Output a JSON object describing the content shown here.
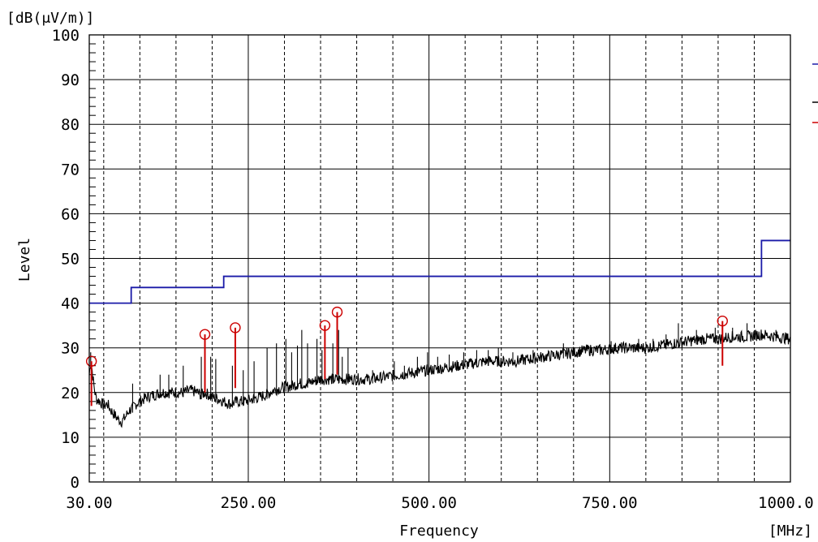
{
  "chart_data": {
    "type": "line",
    "title": "",
    "xlabel": "Frequency",
    "ylabel": "Level",
    "y_unit": "[dB(μV/m)]",
    "x_unit": "[MHz]",
    "xlim": [
      30,
      1000
    ],
    "ylim": [
      0,
      100
    ],
    "x_tick_labels": [
      "30.00",
      "250.00",
      "500.00",
      "750.00",
      "1000.0"
    ],
    "x_ticks": [
      30,
      250,
      500,
      750,
      1000
    ],
    "y_ticks": [
      0,
      10,
      20,
      30,
      40,
      50,
      60,
      70,
      80,
      90,
      100
    ],
    "grid": true,
    "colors": {
      "limit": "#1a1aa8",
      "trace": "#000000",
      "peaks": "#cc0000",
      "grid": "#000000"
    },
    "series": [
      {
        "kind": "limit-step",
        "color": "#1a1aa8",
        "points": [
          [
            30,
            40
          ],
          [
            88,
            40
          ],
          [
            88,
            43.5
          ],
          [
            216,
            43.5
          ],
          [
            216,
            46
          ],
          [
            960,
            46
          ],
          [
            960,
            54
          ],
          [
            1000,
            54
          ]
        ]
      },
      {
        "kind": "measured-trace",
        "color": "#000000",
        "points": [
          [
            30,
            24
          ],
          [
            32,
            27
          ],
          [
            34,
            25
          ],
          [
            36,
            22
          ],
          [
            38,
            20
          ],
          [
            40,
            18.5
          ],
          [
            45,
            18
          ],
          [
            50,
            17
          ],
          [
            55,
            17.5
          ],
          [
            60,
            16
          ],
          [
            65,
            15
          ],
          [
            70,
            14
          ],
          [
            75,
            13.5
          ],
          [
            80,
            14.5
          ],
          [
            85,
            16
          ],
          [
            90,
            16.5
          ],
          [
            95,
            17.5
          ],
          [
            100,
            18
          ],
          [
            110,
            19
          ],
          [
            120,
            19.5
          ],
          [
            130,
            20
          ],
          [
            140,
            20
          ],
          [
            150,
            20
          ],
          [
            160,
            20
          ],
          [
            170,
            20.5
          ],
          [
            180,
            20
          ],
          [
            185,
            19.5
          ],
          [
            190,
            20
          ],
          [
            200,
            19
          ],
          [
            210,
            18.5
          ],
          [
            216,
            18
          ],
          [
            225,
            17.5
          ],
          [
            235,
            18
          ],
          [
            245,
            18
          ],
          [
            255,
            18.5
          ],
          [
            265,
            19
          ],
          [
            275,
            19.5
          ],
          [
            285,
            20.5
          ],
          [
            295,
            21
          ],
          [
            310,
            21.5
          ],
          [
            320,
            22
          ],
          [
            330,
            22
          ],
          [
            340,
            22.5
          ],
          [
            350,
            23
          ],
          [
            365,
            23
          ],
          [
            380,
            23
          ],
          [
            400,
            23
          ],
          [
            420,
            23
          ],
          [
            440,
            23.5
          ],
          [
            460,
            24
          ],
          [
            480,
            24.5
          ],
          [
            500,
            25
          ],
          [
            520,
            25.5
          ],
          [
            540,
            26
          ],
          [
            560,
            26.5
          ],
          [
            580,
            27
          ],
          [
            600,
            27
          ],
          [
            620,
            27
          ],
          [
            640,
            27.5
          ],
          [
            660,
            28
          ],
          [
            680,
            28.5
          ],
          [
            700,
            29
          ],
          [
            720,
            29.5
          ],
          [
            740,
            29.5
          ],
          [
            760,
            30
          ],
          [
            780,
            30
          ],
          [
            800,
            30
          ],
          [
            820,
            30.5
          ],
          [
            840,
            31
          ],
          [
            860,
            31.5
          ],
          [
            880,
            32
          ],
          [
            900,
            32
          ],
          [
            920,
            32.5
          ],
          [
            940,
            32.5
          ],
          [
            960,
            33
          ],
          [
            980,
            32.5
          ],
          [
            1000,
            32
          ]
        ],
        "spikes": [
          [
            32,
            29
          ],
          [
            90,
            22
          ],
          [
            128,
            24
          ],
          [
            140,
            24
          ],
          [
            160,
            26
          ],
          [
            185,
            28
          ],
          [
            198,
            28
          ],
          [
            205,
            27.5
          ],
          [
            228,
            26
          ],
          [
            243,
            25
          ],
          [
            258,
            27
          ],
          [
            276,
            30
          ],
          [
            289,
            31
          ],
          [
            302,
            32
          ],
          [
            310,
            29
          ],
          [
            318,
            30.5
          ],
          [
            324,
            34
          ],
          [
            332,
            31
          ],
          [
            345,
            32
          ],
          [
            352,
            29.5
          ],
          [
            367,
            31
          ],
          [
            375,
            34
          ],
          [
            380,
            28
          ],
          [
            388,
            30
          ],
          [
            422,
            25
          ],
          [
            452,
            27
          ],
          [
            466,
            26
          ],
          [
            484,
            28
          ],
          [
            498,
            29
          ],
          [
            512,
            28
          ],
          [
            528,
            28.5
          ],
          [
            548,
            29
          ],
          [
            566,
            29.5
          ],
          [
            582,
            29.5
          ],
          [
            596,
            30
          ],
          [
            616,
            29
          ],
          [
            644,
            29.5
          ],
          [
            686,
            31
          ],
          [
            752,
            31.5
          ],
          [
            790,
            32
          ],
          [
            810,
            32
          ],
          [
            828,
            33
          ],
          [
            845,
            35.5
          ],
          [
            870,
            34
          ],
          [
            896,
            34.5
          ],
          [
            920,
            34.5
          ],
          [
            940,
            35.5
          ],
          [
            980,
            34
          ]
        ]
      }
    ],
    "peaks": [
      {
        "x": 33,
        "top": 27,
        "bottom": 17
      },
      {
        "x": 190,
        "top": 33,
        "bottom": 20
      },
      {
        "x": 232,
        "top": 34.5,
        "bottom": 21
      },
      {
        "x": 356,
        "top": 35,
        "bottom": 23
      },
      {
        "x": 373,
        "top": 38,
        "bottom": 24
      },
      {
        "x": 906,
        "top": 36,
        "bottom": 26
      }
    ]
  }
}
